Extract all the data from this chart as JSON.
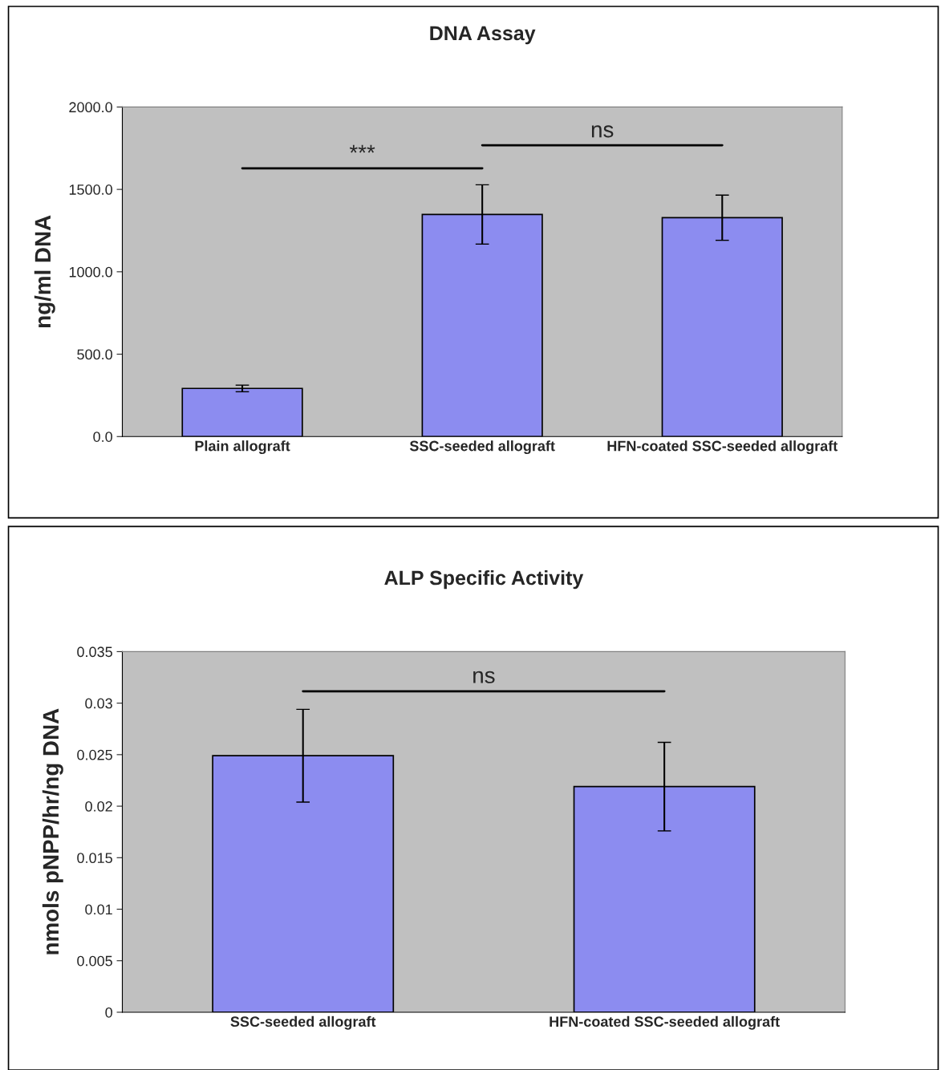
{
  "chart_data": [
    {
      "type": "bar",
      "title": "DNA Assay",
      "ylabel": "ng/ml DNA",
      "categories": [
        "Plain allograft",
        "SSC-seeded allograft",
        "HFN-coated SSC-seeded allograft"
      ],
      "values": [
        292,
        1348,
        1328
      ],
      "errors": [
        20,
        180,
        137
      ],
      "color": "#8c8cf0",
      "ylim": [
        0,
        2000
      ],
      "yticks": [
        {
          "value": 0,
          "label": "0.0"
        },
        {
          "value": 500,
          "label": "500.0"
        },
        {
          "value": 1000,
          "label": "1000.0"
        },
        {
          "value": 1500,
          "label": "1500.0"
        },
        {
          "value": 2000,
          "label": "2000.0"
        }
      ],
      "annotations": [
        "***",
        "ns"
      ],
      "grid": false,
      "legend": false
    },
    {
      "type": "bar",
      "title": "ALP Specific Activity",
      "ylabel": "nmols pNPP/hr/ng DNA",
      "categories": [
        "SSC-seeded allograft",
        "HFN-coated SSC-seeded allograft"
      ],
      "values": [
        0.0249,
        0.0219
      ],
      "errors": [
        0.0045,
        0.0043
      ],
      "color": "#8c8cf0",
      "ylim": [
        0,
        0.035
      ],
      "yticks": [
        0,
        0.005,
        0.01,
        0.015,
        0.02,
        0.025,
        0.03,
        0.035
      ],
      "annotations": [
        "ns"
      ],
      "grid": false,
      "legend": false
    }
  ]
}
